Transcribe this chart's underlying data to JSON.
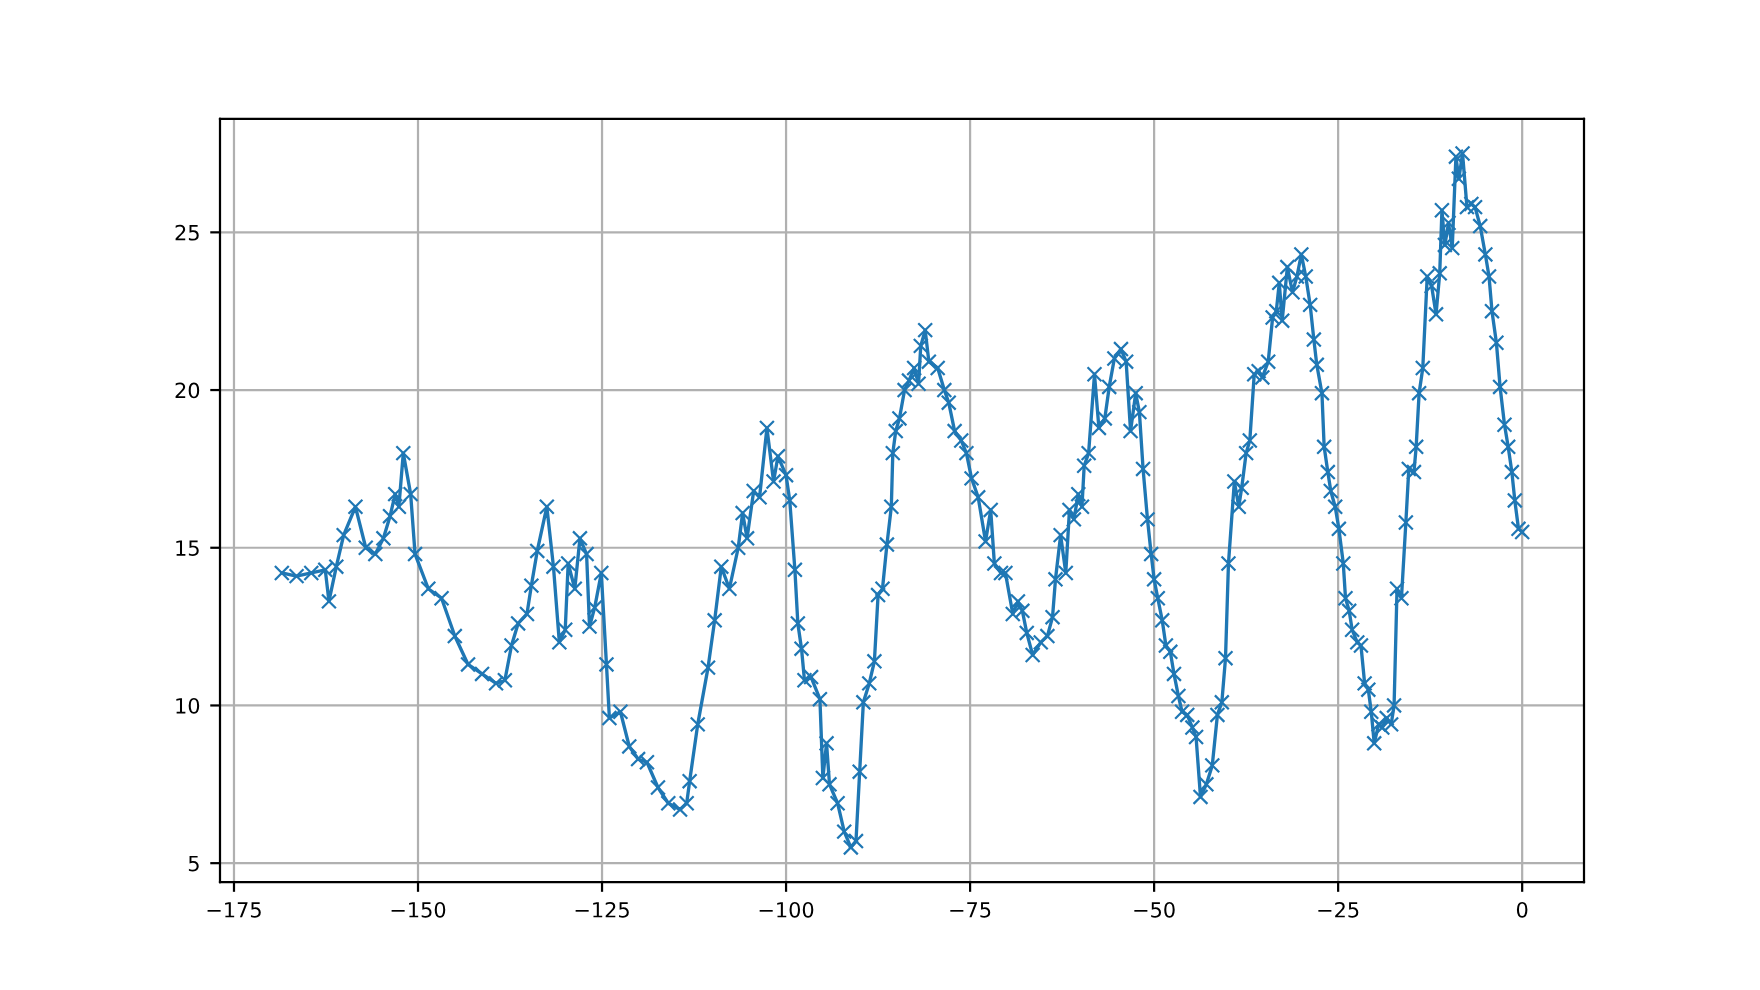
{
  "chart_data": {
    "type": "line",
    "marker": "cross",
    "grid": true,
    "xlim": [
      -176.9,
      8.4
    ],
    "ylim": [
      4.4,
      28.6
    ],
    "xticks": [
      {
        "value": -175,
        "label": "−175"
      },
      {
        "value": -150,
        "label": "−150"
      },
      {
        "value": -125,
        "label": "−125"
      },
      {
        "value": -100,
        "label": "−100"
      },
      {
        "value": -75,
        "label": "−75"
      },
      {
        "value": -50,
        "label": "−50"
      },
      {
        "value": -25,
        "label": "−25"
      },
      0
    ],
    "yticks": [
      5,
      10,
      15,
      20,
      25
    ],
    "series": [
      {
        "color": "#1f77b4",
        "x": [
          -168.5,
          -166.5,
          -164.5,
          -162.6,
          -162.1,
          -161.1,
          -160.1,
          -158.5,
          -157.1,
          -155.8,
          -154.7,
          -153.8,
          -153.1,
          -152.6,
          -152.0,
          -151.0,
          -150.4,
          -148.6,
          -146.8,
          -145.0,
          -143.2,
          -141.3,
          -139.4,
          -138.2,
          -137.3,
          -136.4,
          -135.2,
          -134.6,
          -133.8,
          -132.5,
          -131.6,
          -130.8,
          -130.0,
          -129.6,
          -128.7,
          -128.0,
          -127.1,
          -126.7,
          -126.0,
          -125.1,
          -124.4,
          -124.0,
          -122.5,
          -121.3,
          -120.1,
          -118.9,
          -117.4,
          -116.0,
          -114.4,
          -113.5,
          -113.1,
          -112.0,
          -110.6,
          -109.7,
          -108.8,
          -107.7,
          -106.5,
          -105.9,
          -105.3,
          -104.4,
          -103.6,
          -102.6,
          -101.7,
          -101.1,
          -100.0,
          -99.5,
          -98.8,
          -98.4,
          -97.9,
          -97.5,
          -96.6,
          -95.4,
          -95.0,
          -94.5,
          -94.1,
          -93.0,
          -92.1,
          -91.2,
          -90.5,
          -90.0,
          -89.5,
          -88.7,
          -88.0,
          -87.5,
          -86.9,
          -86.3,
          -85.7,
          -85.5,
          -85.1,
          -84.6,
          -83.9,
          -83.3,
          -82.6,
          -82.0,
          -81.7,
          -81.1,
          -80.6,
          -79.4,
          -78.5,
          -77.9,
          -77.1,
          -76.2,
          -75.5,
          -74.8,
          -73.9,
          -72.9,
          -72.2,
          -71.7,
          -70.8,
          -70.2,
          -69.2,
          -68.5,
          -67.9,
          -67.3,
          -66.5,
          -65.4,
          -64.5,
          -63.8,
          -63.4,
          -62.7,
          -62.0,
          -61.5,
          -60.9,
          -60.3,
          -59.8,
          -59.5,
          -58.9,
          -58.1,
          -57.5,
          -56.7,
          -56.1,
          -55.4,
          -54.5,
          -53.8,
          -53.2,
          -52.5,
          -52.0,
          -51.5,
          -50.9,
          -50.4,
          -50.0,
          -49.5,
          -48.9,
          -48.4,
          -47.8,
          -47.3,
          -46.7,
          -46.2,
          -45.5,
          -44.8,
          -44.3,
          -43.7,
          -42.9,
          -42.1,
          -41.4,
          -40.8,
          -40.3,
          -39.9,
          -39.1,
          -38.5,
          -38.1,
          -37.5,
          -37.0,
          -36.4,
          -35.8,
          -35.3,
          -34.5,
          -33.9,
          -33.4,
          -33.0,
          -32.6,
          -31.9,
          -31.2,
          -30.6,
          -30.0,
          -29.4,
          -28.8,
          -28.3,
          -27.9,
          -27.2,
          -26.9,
          -26.4,
          -26.0,
          -25.4,
          -24.9,
          -24.3,
          -24.0,
          -23.5,
          -23.1,
          -22.4,
          -21.9,
          -21.4,
          -20.9,
          -20.5,
          -20.1,
          -19.5,
          -19.0,
          -18.4,
          -17.8,
          -17.4,
          -17.0,
          -16.4,
          -15.8,
          -15.4,
          -14.7,
          -14.4,
          -14.0,
          -13.5,
          -12.9,
          -12.3,
          -11.7,
          -11.2,
          -10.9,
          -10.5,
          -10.0,
          -9.5,
          -9.0,
          -8.6,
          -8.1,
          -7.5,
          -6.9,
          -6.4,
          -5.7,
          -5.0,
          -4.5,
          -4.1,
          -3.5,
          -3.0,
          -2.4,
          -1.9,
          -1.4,
          -1.0,
          -0.5,
          0.0
        ],
        "values": [
          14.2,
          14.1,
          14.2,
          14.3,
          13.3,
          14.4,
          15.4,
          16.3,
          15.0,
          14.8,
          15.3,
          16.0,
          16.7,
          16.3,
          18.0,
          16.7,
          14.8,
          13.7,
          13.4,
          12.2,
          11.3,
          11.0,
          10.7,
          10.8,
          11.9,
          12.6,
          12.9,
          13.8,
          14.9,
          16.3,
          14.4,
          12.0,
          12.4,
          14.5,
          13.7,
          15.3,
          14.8,
          12.5,
          13.1,
          14.2,
          11.3,
          9.6,
          9.8,
          8.7,
          8.3,
          8.2,
          7.4,
          6.9,
          6.7,
          6.9,
          7.6,
          9.4,
          11.2,
          12.7,
          14.4,
          13.7,
          15.0,
          16.1,
          15.3,
          16.8,
          16.6,
          18.8,
          17.1,
          17.9,
          17.3,
          16.5,
          14.3,
          12.6,
          11.8,
          10.8,
          10.9,
          10.2,
          7.7,
          8.8,
          7.5,
          6.9,
          6.0,
          5.5,
          5.7,
          7.9,
          10.1,
          10.7,
          11.4,
          13.5,
          13.7,
          15.1,
          16.3,
          18.0,
          18.7,
          19.1,
          20.0,
          20.3,
          20.7,
          20.2,
          21.4,
          21.9,
          20.9,
          20.7,
          20.0,
          19.6,
          18.7,
          18.4,
          18.0,
          17.2,
          16.6,
          15.2,
          16.2,
          14.5,
          14.2,
          14.2,
          12.9,
          13.3,
          13.0,
          12.3,
          11.6,
          12.0,
          12.2,
          12.8,
          14.0,
          15.4,
          14.2,
          16.2,
          15.9,
          16.7,
          16.3,
          17.6,
          18.0,
          20.5,
          18.8,
          19.1,
          20.1,
          21.0,
          21.3,
          20.9,
          18.7,
          19.9,
          19.3,
          17.5,
          15.9,
          14.8,
          14.0,
          13.4,
          12.7,
          11.9,
          11.7,
          11.0,
          10.3,
          9.8,
          9.7,
          9.3,
          9.0,
          7.1,
          7.5,
          8.1,
          9.7,
          10.1,
          11.5,
          14.5,
          17.1,
          16.3,
          16.9,
          18.0,
          18.4,
          20.5,
          20.6,
          20.4,
          20.9,
          22.3,
          22.5,
          23.4,
          22.2,
          23.9,
          23.1,
          23.6,
          24.3,
          23.6,
          22.7,
          21.6,
          20.8,
          19.9,
          18.2,
          17.4,
          16.8,
          16.3,
          15.6,
          14.5,
          13.4,
          13.0,
          12.4,
          12.0,
          11.9,
          10.7,
          10.5,
          9.8,
          8.8,
          9.4,
          9.3,
          9.6,
          9.4,
          10.0,
          13.7,
          13.4,
          15.8,
          17.5,
          17.4,
          18.2,
          19.9,
          20.7,
          23.6,
          23.3,
          22.4,
          23.7,
          25.7,
          24.6,
          25.3,
          24.5,
          27.4,
          26.7,
          27.5,
          25.8,
          25.9,
          25.8,
          25.2,
          24.3,
          23.6,
          22.5,
          21.5,
          20.1,
          18.9,
          18.2,
          17.4,
          16.5,
          15.6,
          15.5
        ]
      }
    ]
  }
}
